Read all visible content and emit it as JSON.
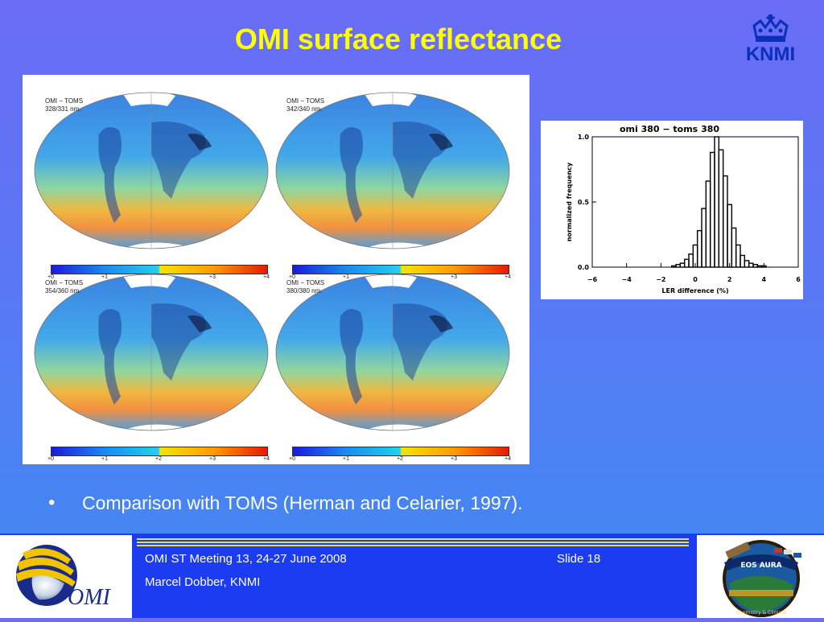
{
  "slide": {
    "title": "OMI surface reflectance",
    "logo_text": "KNMI",
    "bullet": "Comparison with TOMS (Herman and Celarier, 1997)."
  },
  "maps": [
    {
      "line1": "OMI − TOMS",
      "line2": "328/331 nm."
    },
    {
      "line1": "OMI − TOMS",
      "line2": "342/340 nm."
    },
    {
      "line1": "OMI − TOMS",
      "line2": "354/360 nm."
    },
    {
      "line1": "OMI − TOMS",
      "line2": "380/380 nm."
    }
  ],
  "colorbar_ticks": [
    "+0",
    "+1",
    "+2",
    "+3",
    "+4"
  ],
  "histogram": {
    "title": "omi 380 − toms 380",
    "xlabel": "LER difference (%)",
    "ylabel": "normalized frequency",
    "x_ticks": [
      "−6",
      "−4",
      "−2",
      "0",
      "2",
      "4",
      "6"
    ],
    "y_ticks": [
      "0.0",
      "0.5",
      "1.0"
    ]
  },
  "chart_data": {
    "type": "bar",
    "title": "omi 380 − toms 380",
    "xlabel": "LER difference (%)",
    "ylabel": "normalized frequency",
    "xlim": [
      -6,
      6
    ],
    "ylim": [
      0,
      1
    ],
    "x": [
      -1.5,
      -1.25,
      -1.0,
      -0.75,
      -0.5,
      -0.25,
      0,
      0.25,
      0.5,
      0.75,
      1.0,
      1.25,
      1.5,
      1.75,
      2.0,
      2.25,
      2.5,
      2.75,
      3.0,
      3.25,
      3.5,
      3.75,
      4.0,
      4.25,
      4.5
    ],
    "values": [
      0.0,
      0.01,
      0.02,
      0.03,
      0.06,
      0.1,
      0.17,
      0.28,
      0.45,
      0.66,
      0.88,
      1.0,
      0.9,
      0.7,
      0.48,
      0.3,
      0.17,
      0.09,
      0.05,
      0.03,
      0.02,
      0.01,
      0.01,
      0.0,
      0.0
    ]
  },
  "footer": {
    "meeting": "OMI ST Meeting 13, 24-27 June 2008",
    "slide_no": "Slide 18",
    "author": "Marcel Dobber, KNMI",
    "omi_logo_text": "OMI",
    "eos_text": "EOS AURA",
    "eos_sub": "Chemistry & Climate"
  },
  "colors": {
    "title": "#ffff00",
    "footer_band": "#1b3cf0",
    "knmi_blue": "#0a2fb8"
  }
}
